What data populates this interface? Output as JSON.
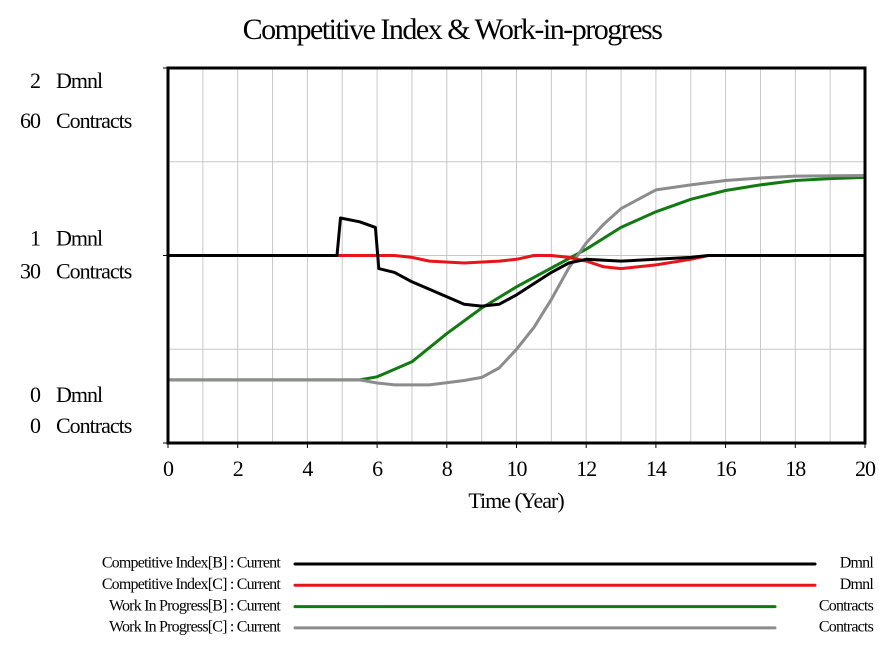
{
  "chart_data": {
    "type": "line",
    "title": "Competitive Index & Work-in-progress",
    "xlabel": "Time (Year)",
    "xlim": [
      0,
      20
    ],
    "xticks": [
      0,
      2,
      4,
      6,
      8,
      10,
      12,
      14,
      16,
      18,
      20
    ],
    "xgrid": [
      1,
      2,
      3,
      4,
      5,
      6,
      7,
      8,
      9,
      10,
      11,
      12,
      13,
      14,
      15,
      16,
      17,
      18,
      19
    ],
    "ylim": [
      0,
      2
    ],
    "yticks": [
      0,
      1,
      2
    ],
    "y_unit": "Dmnl",
    "y2lim": [
      0,
      60
    ],
    "y2ticks": [
      0,
      30,
      60
    ],
    "y2_unit": "Contracts",
    "ygrid": [
      0.5,
      1,
      1.5
    ],
    "series": [
      {
        "name": "Competitive Index[B] : Current",
        "unit": "Dmnl",
        "color": "#000000",
        "axis": "y",
        "x": [
          0,
          4.85,
          4.95,
          5.5,
          5.95,
          6.05,
          6.5,
          7,
          7.5,
          8,
          8.5,
          9,
          9.5,
          10,
          10.5,
          11,
          11.5,
          12,
          13,
          14,
          15,
          15.5,
          20
        ],
        "values": [
          1,
          1,
          1.2,
          1.18,
          1.15,
          0.93,
          0.91,
          0.86,
          0.82,
          0.78,
          0.74,
          0.73,
          0.74,
          0.79,
          0.85,
          0.91,
          0.96,
          0.98,
          0.97,
          0.98,
          0.99,
          1,
          1
        ]
      },
      {
        "name": "Competitive Index[C] : Current",
        "unit": "Dmnl",
        "color": "#e8141c",
        "axis": "y",
        "x": [
          0,
          6.5,
          7,
          7.5,
          8.5,
          9.5,
          10,
          10.5,
          11,
          11.5,
          12,
          12.5,
          13,
          14,
          15,
          15.5,
          20
        ],
        "values": [
          1,
          1,
          0.99,
          0.97,
          0.96,
          0.97,
          0.98,
          1,
          1,
          0.99,
          0.97,
          0.94,
          0.93,
          0.95,
          0.98,
          1,
          1
        ]
      },
      {
        "name": "Work In Progress[B] : Current",
        "unit": "Contracts",
        "color": "#127a12",
        "axis": "y2",
        "x": [
          0,
          5.5,
          6,
          7,
          8,
          9,
          10,
          11,
          12,
          13,
          14,
          15,
          16,
          17,
          18,
          19,
          20
        ],
        "values": [
          10.1,
          10.1,
          10.6,
          13,
          17.5,
          21.6,
          25,
          28,
          31,
          34.5,
          37,
          39,
          40.4,
          41.3,
          42,
          42.3,
          42.5
        ]
      },
      {
        "name": "Work In Progress[C] : Current",
        "unit": "Contracts",
        "color": "#8c8c8c",
        "axis": "y2",
        "x": [
          0,
          5.5,
          6,
          6.5,
          7.5,
          8.5,
          9,
          9.5,
          10,
          10.5,
          11,
          11.5,
          12,
          12.5,
          13,
          14,
          15,
          16,
          17,
          18,
          20
        ],
        "values": [
          10.1,
          10.1,
          9.6,
          9.3,
          9.3,
          10,
          10.5,
          12,
          15,
          18.5,
          23,
          28,
          32,
          35,
          37.5,
          40.5,
          41.3,
          42,
          42.4,
          42.7,
          42.8
        ]
      }
    ]
  }
}
